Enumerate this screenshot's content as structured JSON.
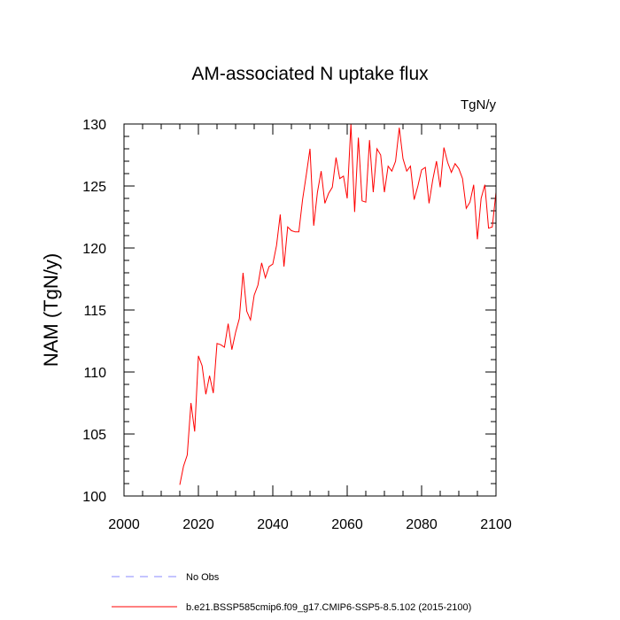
{
  "chart_data": {
    "type": "line",
    "title": "AM-associated N uptake flux",
    "units": "TgN/y",
    "xlabel": "",
    "ylabel": "NAM  (TgN/y)",
    "xlim": [
      2000,
      2100
    ],
    "ylim": [
      100,
      130
    ],
    "xticks": [
      2000,
      2020,
      2040,
      2060,
      2080,
      2100
    ],
    "yticks": [
      100,
      105,
      110,
      115,
      120,
      125,
      130
    ],
    "series": [
      {
        "name": "b.e21.BSSP585cmip6.f09_g17.CMIP6-SSP5-8.5.102 (2015-2100)",
        "color": "#ff0000",
        "x": [
          2015,
          2016,
          2017,
          2018,
          2019,
          2020,
          2021,
          2022,
          2023,
          2024,
          2025,
          2026,
          2027,
          2028,
          2029,
          2030,
          2031,
          2032,
          2033,
          2034,
          2035,
          2036,
          2037,
          2038,
          2039,
          2040,
          2041,
          2042,
          2043,
          2044,
          2045,
          2046,
          2047,
          2048,
          2049,
          2050,
          2051,
          2052,
          2053,
          2054,
          2055,
          2056,
          2057,
          2058,
          2059,
          2060,
          2061,
          2062,
          2063,
          2064,
          2065,
          2066,
          2067,
          2068,
          2069,
          2070,
          2071,
          2072,
          2073,
          2074,
          2075,
          2076,
          2077,
          2078,
          2079,
          2080,
          2081,
          2082,
          2083,
          2084,
          2085,
          2086,
          2087,
          2088,
          2089,
          2090,
          2091,
          2092,
          2093,
          2094,
          2095,
          2096,
          2097,
          2098,
          2099,
          2100
        ],
        "values": [
          100.9,
          102.4,
          103.3,
          107.5,
          105.2,
          111.3,
          110.5,
          108.2,
          109.7,
          108.3,
          112.3,
          112.2,
          112.0,
          113.9,
          111.8,
          113.2,
          114.3,
          118.0,
          114.9,
          114.2,
          116.2,
          117.0,
          118.8,
          117.6,
          118.5,
          118.7,
          120.2,
          122.7,
          118.5,
          121.7,
          121.4,
          121.3,
          121.3,
          123.9,
          125.9,
          128.0,
          121.8,
          124.5,
          126.2,
          123.6,
          124.4,
          124.9,
          127.3,
          125.6,
          125.8,
          124.0,
          130.0,
          122.9,
          128.9,
          123.8,
          123.7,
          128.7,
          124.5,
          128.0,
          127.5,
          124.5,
          126.6,
          126.2,
          127.0,
          129.7,
          127.2,
          126.2,
          126.6,
          123.9,
          125.0,
          126.3,
          126.5,
          123.6,
          125.5,
          127.0,
          124.9,
          128.1,
          126.9,
          126.1,
          126.8,
          126.4,
          125.6,
          123.2,
          123.7,
          125.1,
          120.7,
          124.0,
          125.1,
          121.6,
          121.7,
          124.5
        ]
      }
    ],
    "legend": {
      "position": "bottom-left",
      "entries": [
        {
          "label": "No Obs",
          "style": "dashed",
          "color": "#8888ff"
        },
        {
          "label": "b.e21.BSSP585cmip6.f09_g17.CMIP6-SSP5-8.5.102 (2015-2100)",
          "style": "solid",
          "color": "#ff0000"
        }
      ]
    }
  }
}
